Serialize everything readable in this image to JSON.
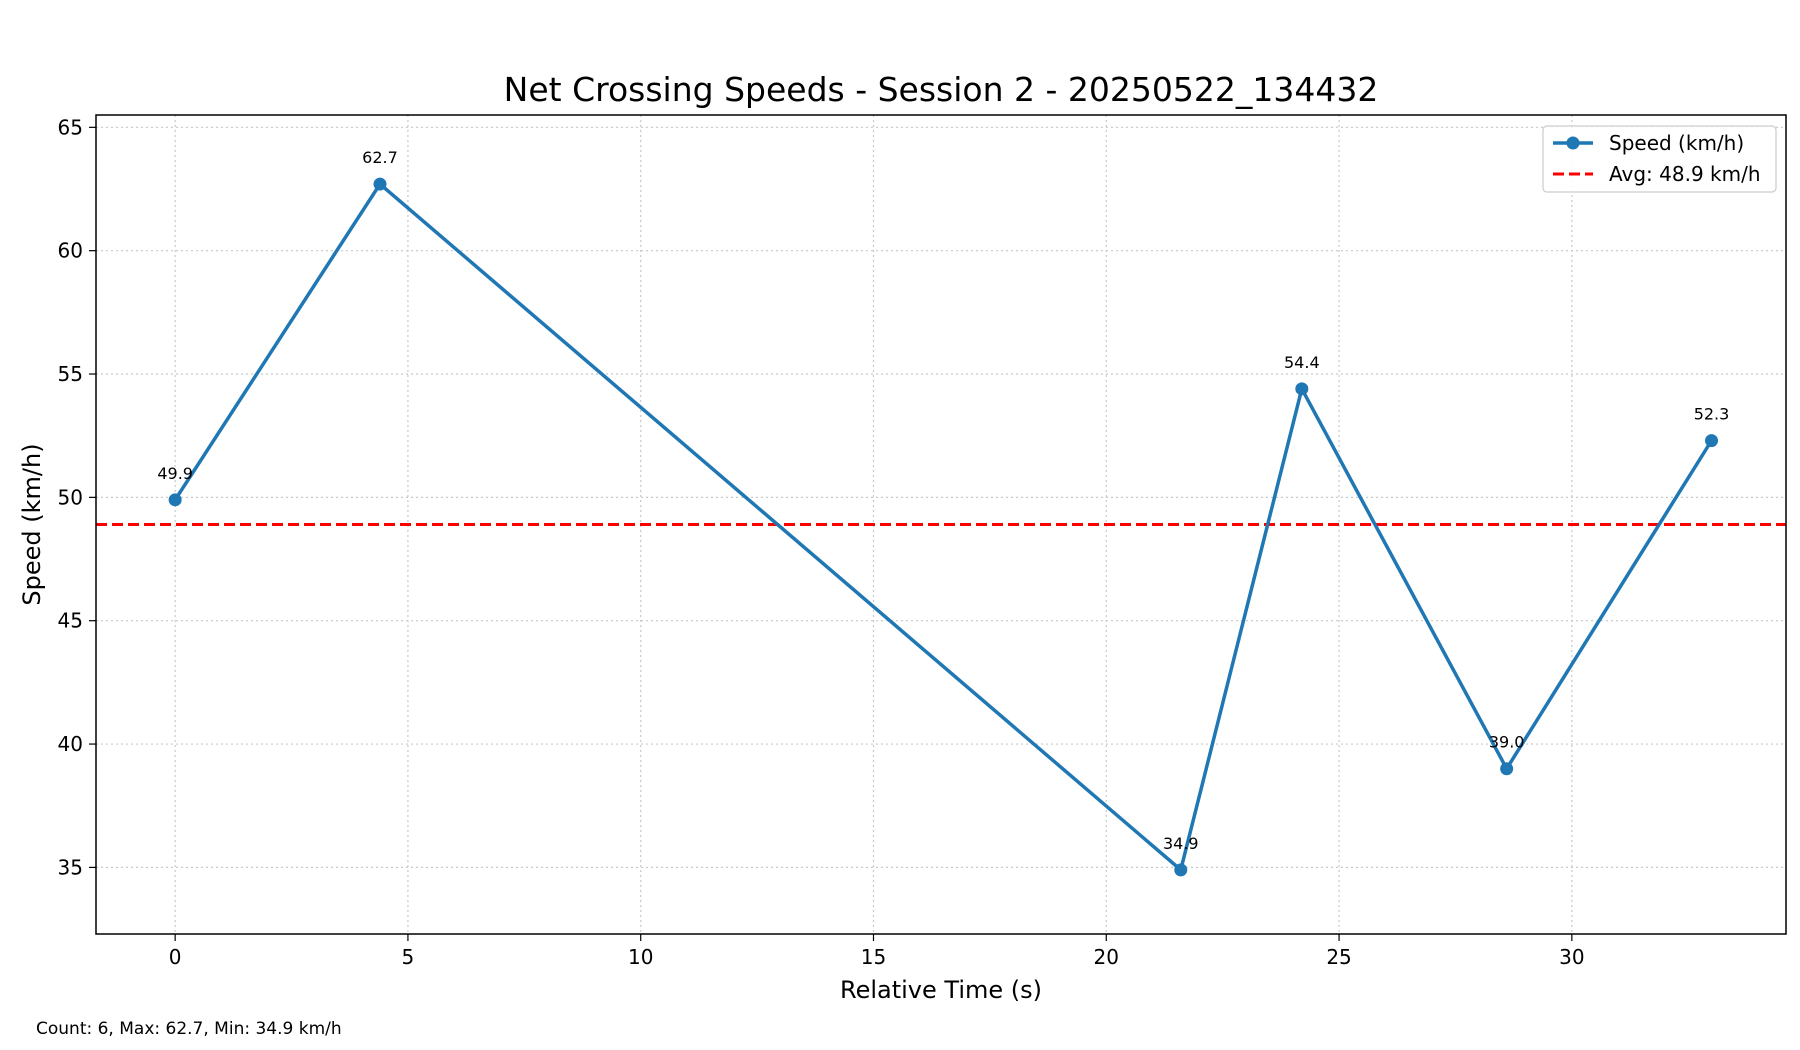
{
  "chart_data": {
    "type": "line",
    "title": "Net Crossing Speeds - Session 2 - 20250522_134432",
    "xlabel": "Relative Time (s)",
    "ylabel": "Speed (km/h)",
    "xlim": [
      -1.7,
      34.6
    ],
    "ylim": [
      32.3,
      65.5
    ],
    "x_ticks": [
      0,
      5,
      10,
      15,
      20,
      25,
      30
    ],
    "y_ticks": [
      35,
      40,
      45,
      50,
      55,
      60,
      65
    ],
    "grid": true,
    "legend_position": "top-right",
    "series": [
      {
        "name": "Speed (km/h)",
        "color": "#1f77b4",
        "marker": "circle",
        "x": [
          0,
          4.4,
          21.6,
          24.2,
          28.6,
          33.0
        ],
        "y": [
          49.9,
          62.7,
          34.9,
          54.4,
          39.0,
          52.3
        ],
        "labels": [
          "49.9",
          "62.7",
          "34.9",
          "54.4",
          "39.0",
          "52.3"
        ]
      }
    ],
    "reference_lines": [
      {
        "name": "Avg: 48.9 km/h",
        "orientation": "horizontal",
        "value": 48.9,
        "color": "#ff0000",
        "style": "dashed"
      }
    ],
    "footer": "Count: 6, Max: 62.7, Min: 34.9 km/h"
  }
}
